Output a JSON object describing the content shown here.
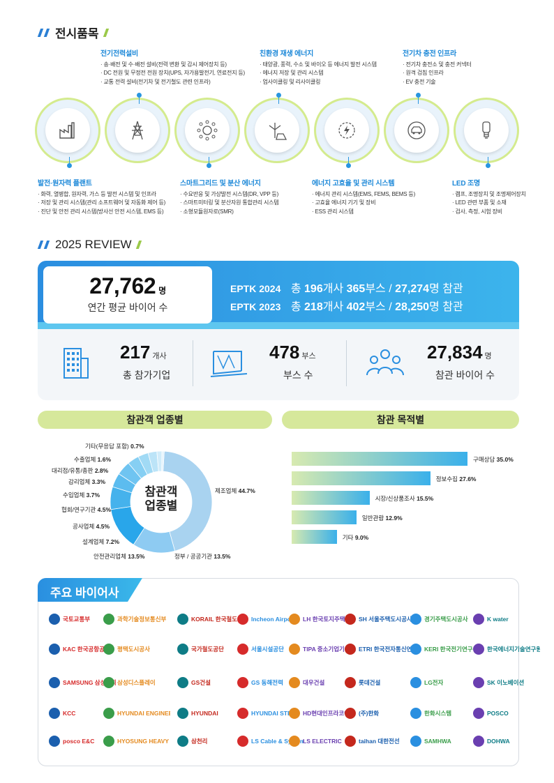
{
  "sections": {
    "exhibit_title": "전시품목",
    "review_title": "2025 REVIEW"
  },
  "exhibits": {
    "power": {
      "title": "전기전력설비",
      "items": [
        "송·배전 및 수·배전 설비(전력 변환 및 감시 제어장치 등)",
        "DC 전원 및 무정전 전원 장치(UPS, 자가용발전기, 연료전지 등)",
        "교통 전력 설비(전기차 및 전기철도 관련 인프라)"
      ]
    },
    "green": {
      "title": "친환경 재생 에너지",
      "items": [
        "태양광, 풍력, 수소 및 바이오 등 에너지 발전 시스템",
        "에너지 저장 및 관리 시스템",
        "업사이클링 및 리사이클링"
      ]
    },
    "ev": {
      "title": "전기차 충전 인프라",
      "items": [
        "전기차 충전소 및 충전 커넥터",
        "원격 검침 인프라",
        "EV 충전 기술"
      ]
    },
    "plant": {
      "title": "발전·원자력 플랜트",
      "items": [
        "화력, 열병합, 원자력, 가스 등 발전 시스템 및 인프라",
        "저장 및 관리 시스템(관리 소프트웨어 및 자동화 제어 등)",
        "진단 및 안전 관리 시스템(방사선 안전 시스템, EMS 등)"
      ]
    },
    "smart": {
      "title": "스마트그리드 및 분산 에너지",
      "items": [
        "수요반응 및 가상발전 시스템(DR, VPP 등)",
        "스마트미터링 및 분산자원 통합관리 시스템",
        "소형모듈원자로(SMR)"
      ]
    },
    "effic": {
      "title": "에너지 고효율 및 관리 시스템",
      "items": [
        "에너지 관리 시스템(EMS, FEMS, BEMS 등)",
        "고효율 에너지 기기 및 장비",
        "ESS 관리 시스템"
      ]
    },
    "led": {
      "title": "LED 조명",
      "items": [
        "램프, 조명장치 및 조명제어장치",
        "LED 관련 부품 및 소재",
        "검사, 측정, 시험 장비"
      ]
    }
  },
  "review": {
    "avg_buyers": {
      "value": "27,762",
      "unit": "명",
      "label": "연간 평균 바이어 수"
    },
    "eptk2024": {
      "year": "EPTK 2024",
      "prefix": "총",
      "companies": "196",
      "companies_unit": "개사",
      "booths": "365",
      "booths_unit": "부스",
      "sep": "/",
      "visitors": "27,274",
      "visitors_unit": "명 참관"
    },
    "eptk2023": {
      "year": "EPTK 2023",
      "prefix": "총",
      "companies": "218",
      "companies_unit": "개사",
      "booths": "402",
      "booths_unit": "부스",
      "sep": "/",
      "visitors": "28,250",
      "visitors_unit": "명 참관"
    },
    "stats": [
      {
        "value": "217",
        "unit": "개사",
        "label": "총 참가기업",
        "icon": "building-icon"
      },
      {
        "value": "478",
        "unit": "부스",
        "label": "부스 수",
        "icon": "booth-icon"
      },
      {
        "value": "27,834",
        "unit": "명",
        "label": "참관 바이어 수",
        "icon": "people-icon"
      }
    ]
  },
  "industry": {
    "title": "참관객 업종별",
    "center_line1": "참관객",
    "center_line2": "업종별",
    "slices": [
      {
        "name": "제조업체",
        "value": 44.7,
        "color": "#a9d3f0"
      },
      {
        "name": "정부 / 공공기관",
        "value": 13.5,
        "color": "#8ecbf2"
      },
      {
        "name": "안전관리업체",
        "value": 13.5,
        "color": "#29a6ea"
      },
      {
        "name": "설계업체",
        "value": 7.2,
        "color": "#45b2ec"
      },
      {
        "name": "공사업체",
        "value": 4.5,
        "color": "#5cbcef"
      },
      {
        "name": "협회/연구기관",
        "value": 4.5,
        "color": "#6fc4f1"
      },
      {
        "name": "수입업체",
        "value": 3.7,
        "color": "#86cff3"
      },
      {
        "name": "감리업체",
        "value": 3.3,
        "color": "#a1daf5"
      },
      {
        "name": "대리점/유통/총판",
        "value": 2.8,
        "color": "#bce4f8"
      },
      {
        "name": "수출업체",
        "value": 1.6,
        "color": "#d1ecfa"
      },
      {
        "name": "기타(무응답 포함)",
        "value": 0.7,
        "color": "#e4f3fc"
      }
    ]
  },
  "purpose": {
    "title": "참관 목적별",
    "bars": [
      {
        "name": "구매상담",
        "value": 35.0
      },
      {
        "name": "정보수집",
        "value": 27.6
      },
      {
        "name": "시장/신상품조사",
        "value": 15.5
      },
      {
        "name": "일반관람",
        "value": 12.9
      },
      {
        "name": "기타",
        "value": 9.0
      }
    ]
  },
  "chart_data": [
    {
      "type": "pie",
      "title": "참관객 업종별",
      "categories": [
        "제조업체",
        "정부 / 공공기관",
        "안전관리업체",
        "설계업체",
        "공사업체",
        "협회/연구기관",
        "수입업체",
        "감리업체",
        "대리점/유통/총판",
        "수출업체",
        "기타(무응답 포함)"
      ],
      "values": [
        44.7,
        13.5,
        13.5,
        7.2,
        4.5,
        4.5,
        3.7,
        3.3,
        2.8,
        1.6,
        0.7
      ]
    },
    {
      "type": "bar",
      "title": "참관 목적별",
      "categories": [
        "구매상담",
        "정보수집",
        "시장/신상품조사",
        "일반관람",
        "기타"
      ],
      "values": [
        35.0,
        27.6,
        15.5,
        12.9,
        9.0
      ]
    }
  ],
  "buyers": {
    "title": "주요 바이어사",
    "logos": [
      "국토교통부",
      "과학기술정보통신부",
      "KORAIL 한국철도공사",
      "Incheon Airport",
      "LH 한국토지주택공사",
      "SH 서울주택도시공사",
      "경기주택도시공사",
      "K water",
      "KAC 한국공항공사",
      "평택도시공사",
      "국가철도공단",
      "서울시설공단",
      "TIPA 중소기업기술정보진흥원",
      "ETRI 한국전자통신연구원",
      "KERI 한국전기연구원",
      "한국에너지기술연구원",
      "SAMSUNG 삼성전자",
      "삼성디스플레이",
      "GS건설",
      "GS 동해전력",
      "대우건설",
      "롯데건설",
      "LG전자",
      "SK 이노베이션",
      "KCC",
      "HYUNDAI ENGINEERING",
      "HYUNDAI",
      "HYUNDAI STEEL",
      "HD현대인프라코어",
      "(주)한화",
      "한화시스템",
      "POSCO",
      "posco E&C",
      "HYOSUNG HEAVY INDUSTRIES",
      "삼천리",
      "LS Cable & System",
      "LS ELECTRIC",
      "taihan 대한전선",
      "SAMHWA",
      "DOHWA"
    ]
  }
}
